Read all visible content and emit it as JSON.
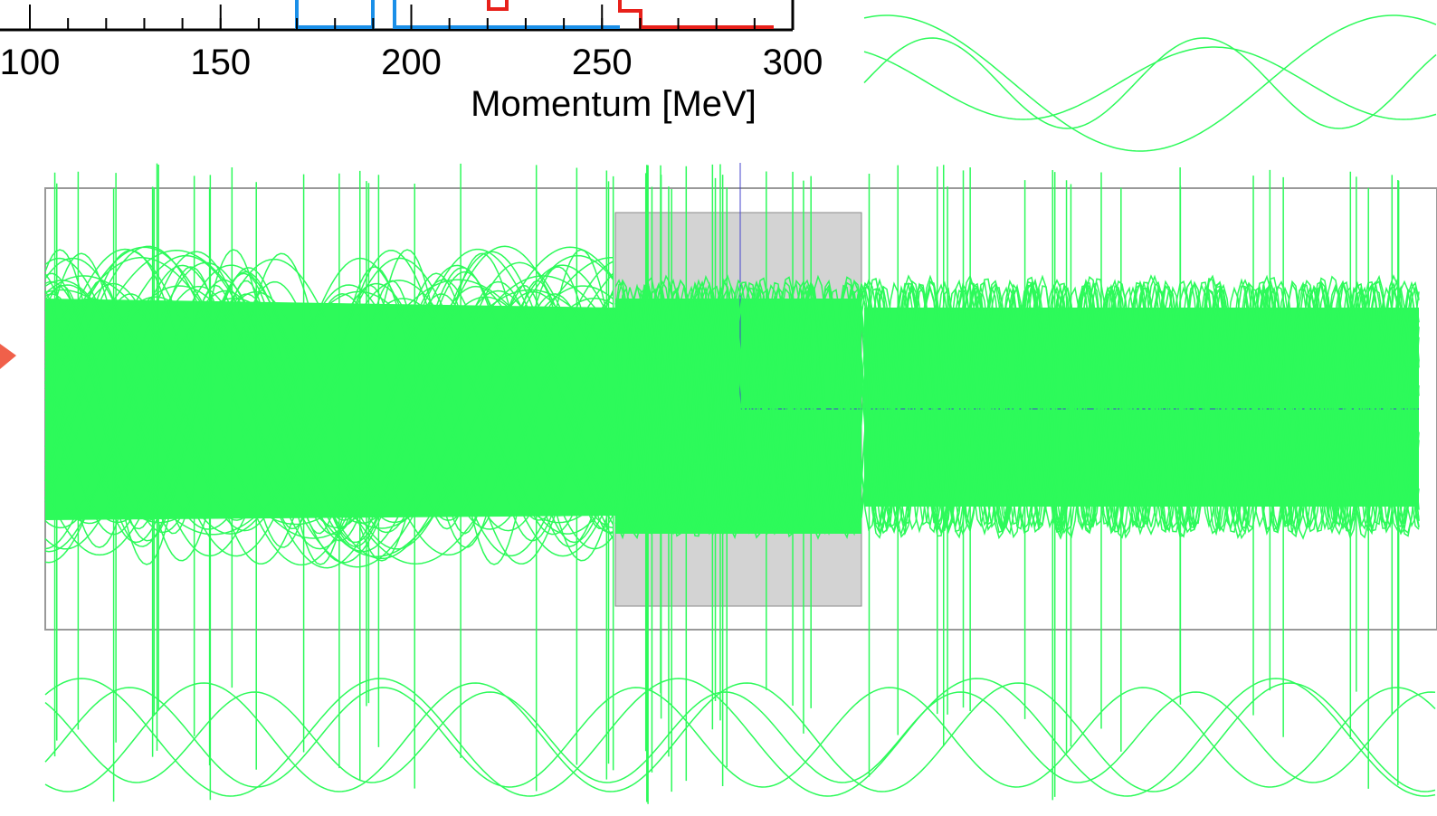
{
  "axis": {
    "label": "Momentum [MeV]",
    "ticks": [
      100,
      150,
      200,
      250,
      300
    ],
    "range": [
      100,
      300
    ]
  }
}
